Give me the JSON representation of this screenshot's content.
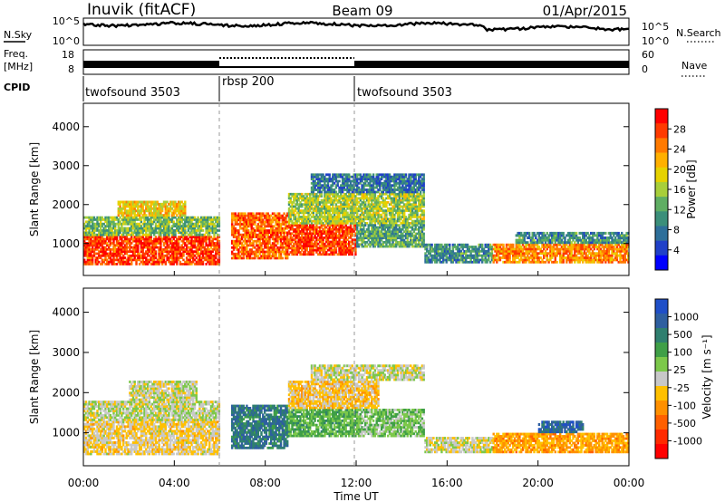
{
  "header": {
    "station": "Inuvik (fitACF)",
    "beam": "Beam 09",
    "date": "01/Apr/2015"
  },
  "noise_panel": {
    "left_label": "N.Sky",
    "right_label": "N.Search",
    "left_ticks": [
      "10^5",
      "10^0"
    ],
    "right_ticks": [
      "10^5",
      "10^0"
    ]
  },
  "freq_panel": {
    "left_label_1": "Freq.",
    "left_label_2": "[MHz]",
    "right_label": "Nave",
    "left_ticks": [
      "18",
      "8"
    ],
    "right_ticks": [
      "60",
      "0"
    ]
  },
  "cpid": {
    "label": "CPID",
    "segments": [
      {
        "name": "twofsound 3503",
        "start_hour": 0,
        "end_hour": 6
      },
      {
        "name": "rbsp 200",
        "start_hour": 6,
        "end_hour": 12
      },
      {
        "name": "twofsound 3503",
        "start_hour": 12,
        "end_hour": 24
      }
    ]
  },
  "axes": {
    "xlabel": "Time UT",
    "x_ticks": [
      "00:00",
      "04:00",
      "08:00",
      "12:00",
      "16:00",
      "20:00",
      "00:00"
    ],
    "ylabel": "Slant Range [km]",
    "y_ticks": [
      "1000",
      "2000",
      "3000",
      "4000"
    ]
  },
  "power_colorbar": {
    "label": "Power [dB]",
    "ticks": [
      "28",
      "24",
      "20",
      "16",
      "12",
      "8",
      "4"
    ],
    "colors": [
      "#ff0000",
      "#ff3a00",
      "#ff7a00",
      "#ffb000",
      "#e6d200",
      "#a8cf3a",
      "#5fae63",
      "#3b8f7a",
      "#2e6f9a",
      "#2040c8",
      "#0000ff"
    ]
  },
  "velocity_colorbar": {
    "label": "Velocity [m s⁻¹]",
    "ticks": [
      "1000",
      "500",
      "100",
      "25",
      "-25",
      "-100",
      "-500",
      "-1000"
    ],
    "colors": [
      "#1f4fc8",
      "#2e5fa0",
      "#2f7f6f",
      "#3f9f47",
      "#7cc84a",
      "#c8c8c8",
      "#ffc000",
      "#ff9000",
      "#ff6000",
      "#ff2a00",
      "#ff0000"
    ]
  },
  "chart_data": [
    {
      "type": "heatmap",
      "title": "Power [dB]",
      "xlabel": "Time UT",
      "ylabel": "Slant Range [km]",
      "xlim": [
        0,
        24
      ],
      "ylim": [
        180,
        4600
      ],
      "color_range": [
        0,
        32
      ],
      "regions": [
        {
          "t0": 0.0,
          "t1": 6.0,
          "r0": 450,
          "r1": 1200,
          "power": 28
        },
        {
          "t0": 0.0,
          "t1": 6.0,
          "r0": 1200,
          "r1": 1700,
          "power": 14
        },
        {
          "t0": 1.5,
          "t1": 4.5,
          "r0": 1700,
          "r1": 2100,
          "power": 20
        },
        {
          "t0": 6.5,
          "t1": 9.0,
          "r0": 600,
          "r1": 1800,
          "power": 26
        },
        {
          "t0": 9.0,
          "t1": 12.0,
          "r0": 700,
          "r1": 1500,
          "power": 28
        },
        {
          "t0": 9.0,
          "t1": 15.0,
          "r0": 1500,
          "r1": 2300,
          "power": 16
        },
        {
          "t0": 10.0,
          "t1": 15.0,
          "r0": 2300,
          "r1": 2800,
          "power": 8
        },
        {
          "t0": 12.0,
          "t1": 15.0,
          "r0": 900,
          "r1": 1500,
          "power": 12
        },
        {
          "t0": 15.0,
          "t1": 18.0,
          "r0": 500,
          "r1": 1000,
          "power": 10
        },
        {
          "t0": 18.0,
          "t1": 24.0,
          "r0": 500,
          "r1": 1000,
          "power": 24
        },
        {
          "t0": 19.0,
          "t1": 24.0,
          "r0": 1000,
          "r1": 1300,
          "power": 10
        }
      ]
    },
    {
      "type": "heatmap",
      "title": "Velocity [m s⁻¹]",
      "xlabel": "Time UT",
      "ylabel": "Slant Range [km]",
      "xlim": [
        0,
        24
      ],
      "ylim": [
        180,
        4600
      ],
      "color_range": [
        -1000,
        1000
      ],
      "regions": [
        {
          "t0": 0.0,
          "t1": 6.0,
          "r0": 450,
          "r1": 1300,
          "velocity": -100
        },
        {
          "t0": 0.0,
          "t1": 6.0,
          "r0": 1300,
          "r1": 1800,
          "velocity": 50
        },
        {
          "t0": 2.0,
          "t1": 5.0,
          "r0": 1800,
          "r1": 2300,
          "velocity": 10
        },
        {
          "t0": 6.5,
          "t1": 9.0,
          "r0": 600,
          "r1": 1700,
          "velocity": 600
        },
        {
          "t0": 9.0,
          "t1": 12.0,
          "r0": 900,
          "r1": 1600,
          "velocity": 300
        },
        {
          "t0": 9.0,
          "t1": 13.0,
          "r0": 1600,
          "r1": 2300,
          "velocity": -150
        },
        {
          "t0": 10.0,
          "t1": 15.0,
          "r0": 2300,
          "r1": 2700,
          "velocity": 10
        },
        {
          "t0": 12.0,
          "t1": 15.0,
          "r0": 900,
          "r1": 1600,
          "velocity": 200
        },
        {
          "t0": 15.0,
          "t1": 18.0,
          "r0": 500,
          "r1": 900,
          "velocity": -20
        },
        {
          "t0": 18.0,
          "t1": 24.0,
          "r0": 500,
          "r1": 1000,
          "velocity": -300
        },
        {
          "t0": 20.0,
          "t1": 22.0,
          "r0": 1000,
          "r1": 1300,
          "velocity": 700
        }
      ]
    }
  ]
}
